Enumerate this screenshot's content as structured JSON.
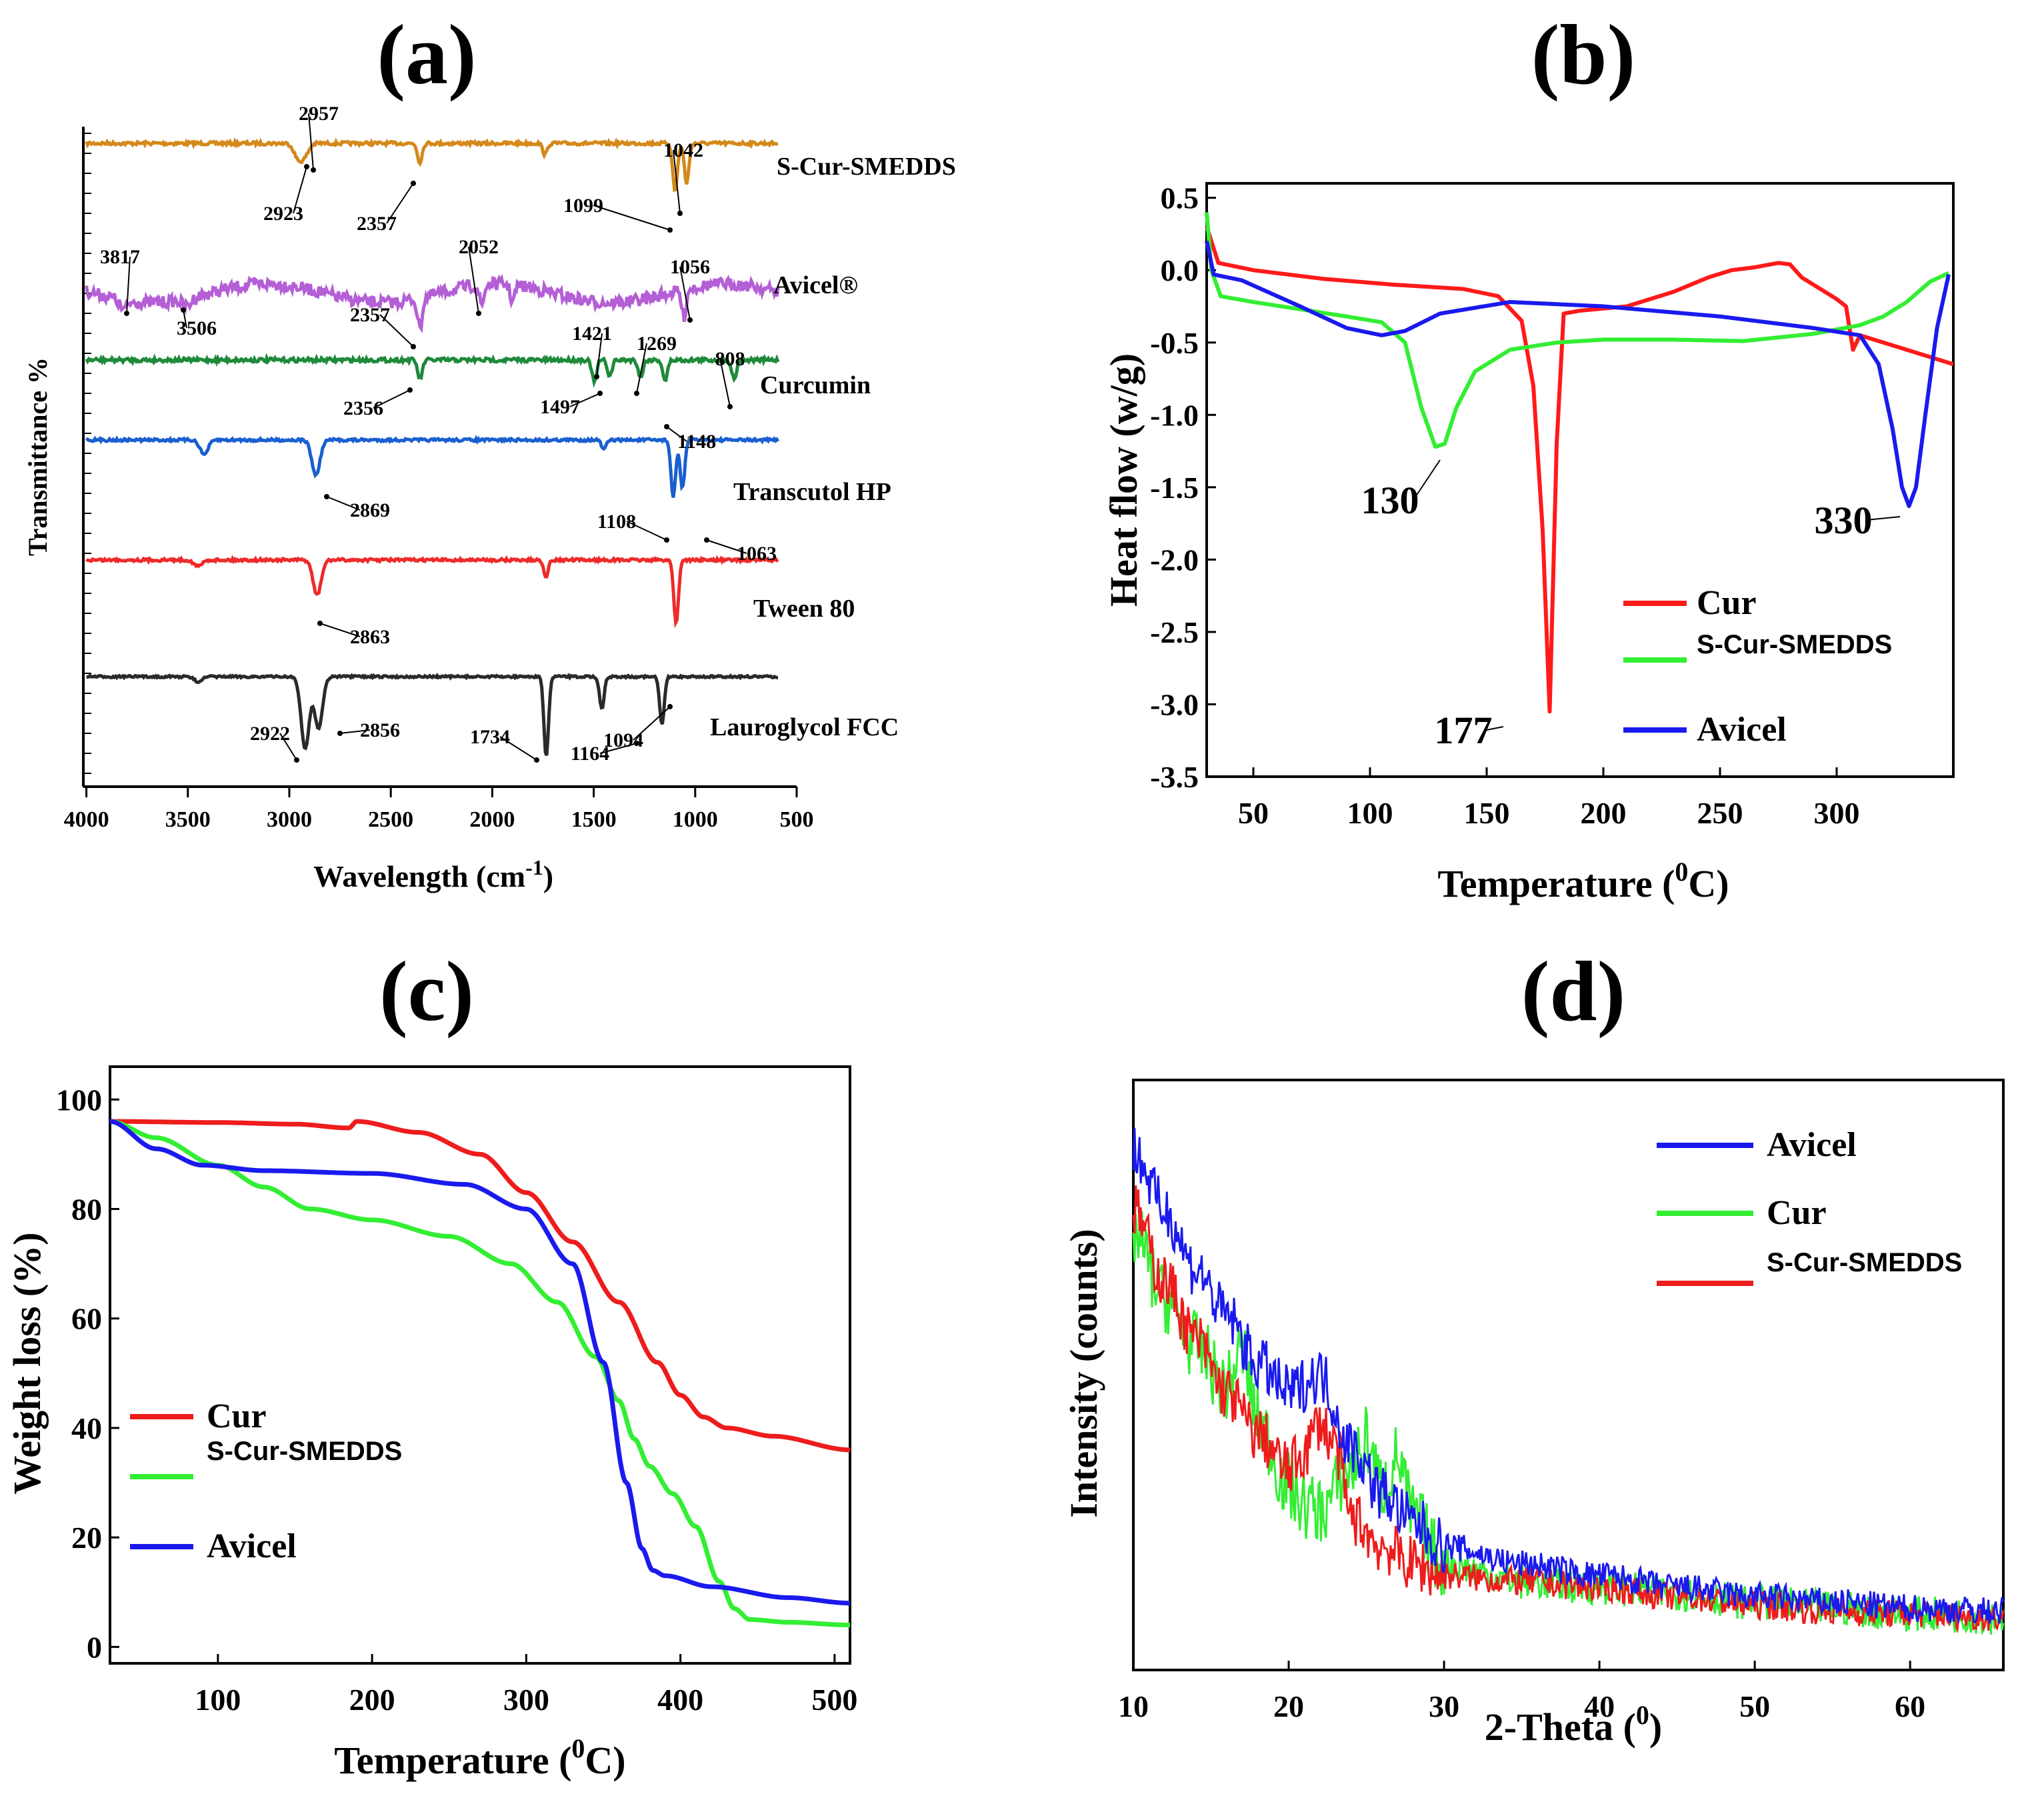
{
  "chart_data": [
    {
      "panel": "(a)",
      "type": "line",
      "title": "",
      "xlabel": "Wavelength (cm",
      "xlabel_sup": "-1",
      "xlabel_end": ")",
      "ylabel": "Transmittance %",
      "xlim": [
        4000,
        500
      ],
      "xticks": [
        "4000",
        "3500",
        "3000",
        "2500",
        "2000",
        "1500",
        "1000",
        "500"
      ],
      "series": [
        {
          "name": "S-Cur-SMEDDS",
          "color": "#d4891a",
          "peaks": [
            [
              2957,
              0.9
            ],
            [
              2923,
              0.7
            ],
            [
              2357,
              1.2
            ],
            [
              1740,
              0.7
            ],
            [
              1099,
              3.0
            ],
            [
              1042,
              2.5
            ]
          ],
          "annotations": [
            "2957",
            "2923",
            "2357",
            "1099",
            "1042"
          ]
        },
        {
          "name": "Avicel®",
          "color": "#b45fd6",
          "peaks": [
            [
              3817,
              0.6
            ],
            [
              3506,
              0.5
            ],
            [
              2357,
              1.9
            ],
            [
              2052,
              1.3
            ],
            [
              1900,
              1.0
            ],
            [
              1056,
              1.7
            ]
          ],
          "annotations": [
            "3817",
            "3506",
            "2052",
            "2357",
            "1056"
          ]
        },
        {
          "name": "Curcumin",
          "color": "#1e8a3a",
          "peaks": [
            [
              2356,
              1.2
            ],
            [
              1497,
              1.4
            ],
            [
              1421,
              1.0
            ],
            [
              1269,
              1.1
            ],
            [
              1148,
              1.3
            ],
            [
              808,
              1.2
            ]
          ],
          "annotations": [
            "1421",
            "1269",
            "808",
            "2356",
            "1497",
            "1148"
          ]
        },
        {
          "name": "Transcutol HP",
          "color": "#1a5fd0",
          "peaks": [
            [
              3420,
              0.9
            ],
            [
              2869,
              2.2
            ],
            [
              1450,
              0.6
            ],
            [
              1108,
              3.6
            ],
            [
              1063,
              3.0
            ]
          ],
          "annotations": [
            "2869",
            "1108",
            "1063"
          ]
        },
        {
          "name": "Tween 80",
          "color": "#ee2a2a",
          "peaks": [
            [
              3450,
              0.4
            ],
            [
              2863,
              2.2
            ],
            [
              1735,
              1.0
            ],
            [
              1094,
              4.0
            ]
          ],
          "annotations": [
            "2863",
            "1094"
          ]
        },
        {
          "name": "Lauroglycol FCC",
          "color": "#2a2a2a",
          "peaks": [
            [
              3450,
              0.3
            ],
            [
              2922,
              4.5
            ],
            [
              2856,
              3.2
            ],
            [
              1734,
              5.0
            ],
            [
              1460,
              2.0
            ],
            [
              1164,
              3.0
            ]
          ],
          "annotations": [
            "2922",
            "2856",
            "1734",
            "1164"
          ]
        }
      ]
    },
    {
      "panel": "(b)",
      "type": "line",
      "title": "",
      "xlabel": "Temperature (",
      "xlabel_sup": "0",
      "xlabel_end": "C)",
      "ylabel": "Heat flow (w/g)",
      "xlim": [
        30,
        350
      ],
      "ylim": [
        -3.5,
        0.6
      ],
      "xticks": [
        "50",
        "100",
        "150",
        "200",
        "250",
        "300"
      ],
      "yticks": [
        "0.5",
        "0.0",
        "-0.5",
        "-1.0",
        "-1.5",
        "-2.0",
        "-2.5",
        "-3.0",
        "-3.5"
      ],
      "legend": [
        "Cur",
        "S-Cur-SMEDDS",
        "Avicel"
      ],
      "series": [
        {
          "name": "Cur",
          "color": "#ff1a1a",
          "x": [
            30,
            35,
            50,
            80,
            110,
            140,
            155,
            165,
            170,
            174,
            177,
            180,
            183,
            190,
            210,
            230,
            245,
            255,
            265,
            275,
            280,
            285,
            290,
            300,
            304,
            307,
            310,
            320,
            330,
            340,
            350
          ],
          "y": [
            0.3,
            0.05,
            0.0,
            -0.06,
            -0.1,
            -0.13,
            -0.18,
            -0.35,
            -0.8,
            -1.8,
            -3.05,
            -1.2,
            -0.3,
            -0.28,
            -0.25,
            -0.15,
            -0.05,
            0.0,
            0.02,
            0.05,
            0.04,
            -0.05,
            -0.1,
            -0.2,
            -0.25,
            -0.55,
            -0.45,
            -0.5,
            -0.55,
            -0.6,
            -0.65
          ]
        },
        {
          "name": "S-Cur-SMEDDS",
          "color": "#33ee33",
          "x": [
            30,
            32,
            36,
            50,
            70,
            90,
            105,
            115,
            122,
            128,
            132,
            137,
            145,
            160,
            180,
            200,
            230,
            260,
            290,
            310,
            320,
            330,
            340,
            348
          ],
          "y": [
            0.4,
            0.0,
            -0.18,
            -0.22,
            -0.27,
            -0.32,
            -0.36,
            -0.5,
            -0.95,
            -1.22,
            -1.2,
            -0.95,
            -0.7,
            -0.55,
            -0.5,
            -0.48,
            -0.48,
            -0.49,
            -0.44,
            -0.38,
            -0.32,
            -0.22,
            -0.08,
            -0.02
          ]
        },
        {
          "name": "Avicel",
          "color": "#1a1aee",
          "x": [
            30,
            33,
            45,
            70,
            90,
            105,
            115,
            130,
            160,
            200,
            250,
            290,
            310,
            318,
            324,
            328,
            331,
            334,
            338,
            343,
            348
          ],
          "y": [
            0.2,
            -0.03,
            -0.07,
            -0.25,
            -0.4,
            -0.45,
            -0.42,
            -0.3,
            -0.22,
            -0.25,
            -0.32,
            -0.4,
            -0.45,
            -0.65,
            -1.1,
            -1.5,
            -1.63,
            -1.5,
            -1.0,
            -0.4,
            -0.03
          ]
        }
      ],
      "annotations": [
        "130",
        "177",
        "330"
      ]
    },
    {
      "panel": "(c)",
      "type": "line",
      "title": "",
      "xlabel": "Temperature (",
      "xlabel_sup": "0",
      "xlabel_end": "C)",
      "ylabel": "Weight loss (%)",
      "xlim": [
        30,
        510
      ],
      "ylim": [
        -3,
        106
      ],
      "xticks": [
        "100",
        "200",
        "300",
        "400",
        "500"
      ],
      "yticks": [
        "100",
        "80",
        "60",
        "40",
        "20",
        "0"
      ],
      "legend": [
        "Cur",
        "S-Cur-SMEDDS",
        "Avicel"
      ],
      "series": [
        {
          "name": "Cur",
          "color": "#ee1c1c",
          "x": [
            30,
            100,
            150,
            185,
            190,
            230,
            270,
            300,
            330,
            360,
            385,
            400,
            415,
            430,
            460,
            510
          ],
          "y": [
            96,
            95.8,
            95.5,
            94.8,
            96,
            94,
            90,
            83,
            74,
            63,
            52,
            46,
            42,
            40,
            38.5,
            36
          ]
        },
        {
          "name": "S-Cur-SMEDDS",
          "color": "#33ee33",
          "x": [
            30,
            60,
            100,
            130,
            160,
            200,
            250,
            290,
            320,
            345,
            360,
            370,
            380,
            395,
            410,
            425,
            435,
            445,
            470,
            510
          ],
          "y": [
            96,
            93,
            88,
            84,
            80,
            78,
            75,
            70,
            63,
            53,
            45,
            38,
            33,
            28,
            22,
            12,
            7,
            5,
            4.5,
            4
          ]
        },
        {
          "name": "Avicel",
          "color": "#1a1aee",
          "x": [
            30,
            60,
            90,
            130,
            200,
            260,
            300,
            330,
            350,
            365,
            375,
            382,
            390,
            420,
            470,
            510
          ],
          "y": [
            96,
            91,
            88,
            87,
            86.5,
            84.5,
            80,
            70,
            52,
            30,
            18,
            14,
            13,
            11,
            9,
            8
          ]
        }
      ]
    },
    {
      "panel": "(d)",
      "type": "line",
      "title": "",
      "xlabel": "2-Theta (",
      "xlabel_sup": "0",
      "xlabel_end": ")",
      "ylabel": "Intensity (counts)",
      "xlim": [
        10,
        66
      ],
      "ylim": [
        0,
        100
      ],
      "xticks": [
        "10",
        "20",
        "30",
        "40",
        "50",
        "60"
      ],
      "legend": [
        "Avicel",
        "Cur",
        "S-Cur-SMEDDS"
      ],
      "series": [
        {
          "name": "Avicel",
          "color": "#1a1aee",
          "x": [
            10,
            12,
            14,
            16,
            18,
            20,
            22,
            24,
            26,
            28,
            30,
            35,
            40,
            45,
            50,
            55,
            60,
            66
          ],
          "y": [
            88,
            78,
            68,
            60,
            52,
            47,
            50,
            38,
            30,
            25,
            21,
            18,
            16,
            14,
            12.5,
            11.5,
            10.5,
            10
          ]
        },
        {
          "name": "Cur",
          "color": "#33ee33",
          "x": [
            10,
            12,
            14,
            16,
            17,
            18,
            20,
            21,
            22,
            24,
            25,
            26,
            27,
            28,
            30,
            35,
            40,
            45,
            50,
            55,
            60,
            66
          ],
          "y": [
            74,
            63,
            55,
            48,
            54,
            42,
            31,
            28,
            27,
            34,
            39,
            31,
            36,
            26,
            18,
            15,
            14,
            13,
            11.5,
            10.5,
            9.5,
            9
          ]
        },
        {
          "name": "S-Cur-SMEDDS",
          "color": "#ee1c1c",
          "x": [
            10,
            12,
            14,
            16,
            18,
            20,
            21,
            22,
            23,
            24,
            26,
            28,
            30,
            35,
            40,
            45,
            50,
            55,
            60,
            66
          ],
          "y": [
            78,
            66,
            56,
            47,
            40,
            34,
            37,
            42,
            38,
            26,
            21,
            18,
            16,
            15,
            14,
            12.5,
            11,
            10,
            9.5,
            9
          ]
        }
      ]
    }
  ]
}
